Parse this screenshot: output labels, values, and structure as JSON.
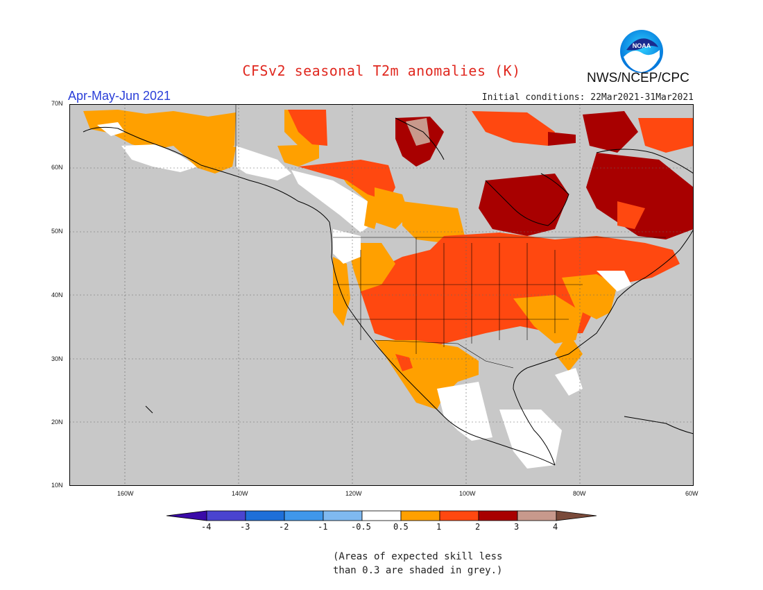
{
  "title": "CFSv2 seasonal T2m anomalies (K)",
  "agency": "NWS/NCEP/CPC",
  "logo_text": "NOAA",
  "period": "Apr-May-Jun 2021",
  "initial_conditions": "Initial conditions: 22Mar2021-31Mar2021",
  "lat_labels": [
    "70N",
    "60N",
    "50N",
    "40N",
    "30N",
    "20N",
    "10N"
  ],
  "lon_labels": [
    "160W",
    "140W",
    "120W",
    "100W",
    "80W",
    "60W"
  ],
  "colorbar": {
    "labels": [
      "-4",
      "-3",
      "-2",
      "-1",
      "-0.5",
      "0.5",
      "1",
      "2",
      "3",
      "4"
    ],
    "colors": [
      "#3a0aa8",
      "#4a44d0",
      "#1e6fd8",
      "#3f97ea",
      "#7fb9f0",
      "#ffffff",
      "#ffa000",
      "#ff4810",
      "#a80000",
      "#c8998c",
      "#7a4a3a"
    ]
  },
  "note_line1": "(Areas of expected skill less",
  "note_line2": "than 0.3 are shaded in grey.)",
  "colors": {
    "ocean_grey": "#c8c8c8",
    "land_grey": "#c8c8c8",
    "title_red": "#e0281f",
    "period_blue": "#2a3ed8"
  }
}
